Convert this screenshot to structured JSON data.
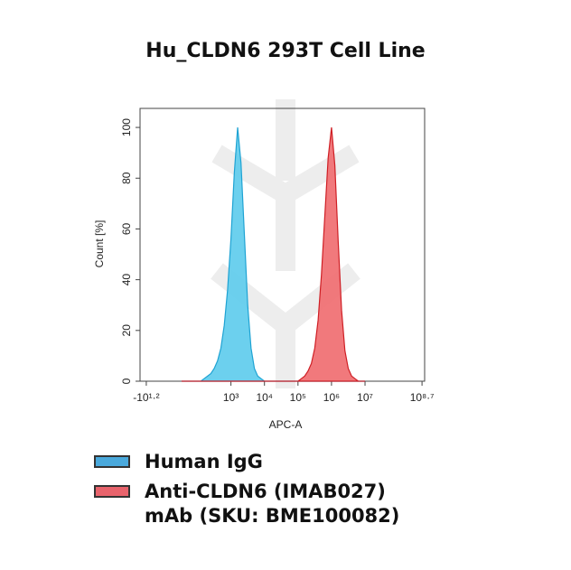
{
  "chart_data": {
    "type": "histogram-overlay",
    "title": "Hu_CLDN6 293T Cell Line",
    "xlabel": "APC-A",
    "ylabel": "Count [%]",
    "xscale": "asinh",
    "x": [
      32,
      40,
      50,
      63,
      79,
      100,
      126,
      158,
      200,
      251,
      316,
      398,
      501,
      631,
      794,
      1000,
      1259,
      1585,
      1995,
      2512,
      3162,
      3981,
      5012,
      6310,
      7943,
      10000,
      12589,
      15849,
      19953,
      25119,
      31623,
      39811,
      50119,
      63096,
      79433,
      100000,
      125893,
      158489,
      199526,
      251189,
      316228,
      398107,
      501187,
      630957,
      794328,
      1000000,
      1258925,
      1584893,
      1995262,
      2511886,
      3162278,
      3981072,
      5011872,
      6309573,
      7943282,
      10000000
    ],
    "series": [
      {
        "name": "Human IgG",
        "color": "#5ccbec",
        "line_color": "#1fa3d3",
        "legend_color": "#4aa9dc",
        "values": [
          0,
          0,
          0,
          0,
          0,
          0,
          0,
          1,
          2,
          3,
          5,
          8,
          13,
          22,
          36,
          56,
          82,
          100,
          86,
          58,
          30,
          13,
          5,
          2,
          1,
          0,
          0,
          0,
          0,
          0,
          0,
          0,
          0,
          0,
          0,
          0,
          0,
          0,
          0,
          0,
          0,
          0,
          0,
          0,
          0,
          0,
          0,
          0,
          0,
          0,
          0,
          0,
          0,
          0,
          0,
          0
        ]
      },
      {
        "name": "Anti-CLDN6 (IMAB027) mAb (SKU: BME100082)",
        "color": "#f06a6e",
        "line_color": "#cf1f25",
        "legend_color": "#e8636c",
        "values": [
          0,
          0,
          0,
          0,
          0,
          0,
          0,
          0,
          0,
          0,
          0,
          0,
          0,
          0,
          0,
          0,
          0,
          0,
          0,
          0,
          0,
          0,
          0,
          0,
          0,
          0,
          0,
          0,
          0,
          0,
          0,
          0,
          0,
          0,
          0,
          0,
          1,
          2,
          4,
          7,
          13,
          24,
          42,
          65,
          88,
          100,
          85,
          55,
          28,
          12,
          5,
          2,
          1,
          0,
          0,
          0
        ]
      }
    ],
    "xlim": [
      -27,
      600000000
    ],
    "xticks": [
      {
        "value": -15.85,
        "label": "-10¹·²"
      },
      {
        "value": 1000,
        "label": "10³"
      },
      {
        "value": 10000,
        "label": "10⁴"
      },
      {
        "value": 100000,
        "label": "10⁵"
      },
      {
        "value": 1000000,
        "label": "10⁶"
      },
      {
        "value": 10000000,
        "label": "10⁷"
      },
      {
        "value": 501187234,
        "label": "10⁸·⁷"
      }
    ],
    "ylim": [
      0,
      107.5
    ],
    "yticks": [
      0,
      20,
      40,
      60,
      80,
      100
    ]
  }
}
